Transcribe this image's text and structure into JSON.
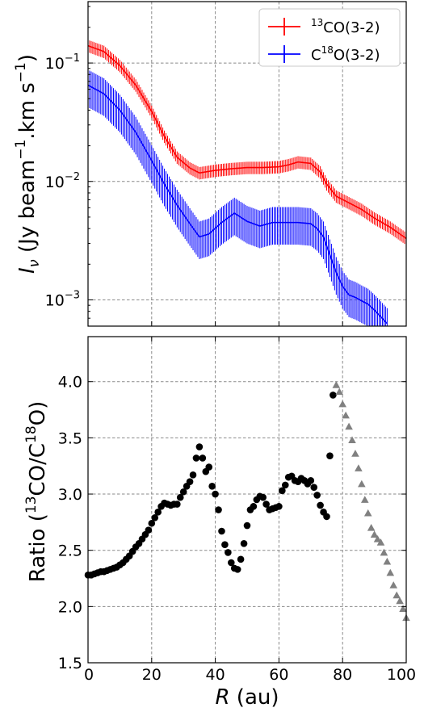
{
  "chart_data": [
    {
      "type": "line",
      "ylabel": "I_ν (Jy beam⁻¹.km s⁻¹)",
      "ylabel_symbol": "I",
      "ylabel_subscript": "ν",
      "ylabel_units_pre": " (Jy beam",
      "ylabel_units_sup1": "−1",
      "ylabel_units_mid": ".km s",
      "ylabel_units_sup2": "−1",
      "ylabel_units_post": ")",
      "yscale": "log",
      "ylim": [
        0.0006,
        0.33
      ],
      "xlim": [
        0,
        100
      ],
      "yticks": [
        {
          "value": 0.1,
          "base": "10",
          "exp": "−1"
        },
        {
          "value": 0.01,
          "base": "10",
          "exp": "−2"
        },
        {
          "value": 0.001,
          "base": "10",
          "exp": "−3"
        }
      ],
      "grid": true,
      "legend_position": "top-right",
      "series": [
        {
          "name": "13CO(3-2)",
          "legend_sup": "13",
          "legend_text": "CO(3-2)",
          "color": "#ff0000",
          "x": [
            0,
            5,
            10,
            15,
            20,
            24,
            28,
            32,
            35,
            40,
            45,
            50,
            55,
            60,
            63,
            66,
            70,
            73,
            75,
            78,
            82,
            86,
            90,
            95,
            100
          ],
          "y": [
            0.14,
            0.125,
            0.095,
            0.065,
            0.039,
            0.024,
            0.016,
            0.013,
            0.0118,
            0.0124,
            0.0128,
            0.0131,
            0.0131,
            0.0133,
            0.0138,
            0.0146,
            0.0142,
            0.012,
            0.0095,
            0.0075,
            0.0066,
            0.0058,
            0.0049,
            0.0041,
            0.0033
          ],
          "err_frac": 0.12
        },
        {
          "name": "C18O(3-2)",
          "legend_pre": "C",
          "legend_sup": "18",
          "legend_text": "O(3-2)",
          "color": "#0000ff",
          "x": [
            0,
            5,
            10,
            15,
            20,
            24,
            28,
            32,
            35,
            38,
            42,
            46,
            50,
            54,
            58,
            62,
            66,
            70,
            72,
            74,
            76,
            78,
            80,
            82,
            84,
            86,
            88,
            90,
            92,
            94
          ],
          "y": [
            0.065,
            0.055,
            0.04,
            0.026,
            0.015,
            0.0095,
            0.0063,
            0.0044,
            0.0034,
            0.0036,
            0.0045,
            0.0054,
            0.0046,
            0.0042,
            0.0045,
            0.0045,
            0.0045,
            0.0044,
            0.004,
            0.0034,
            0.0024,
            0.0017,
            0.0013,
            0.0011,
            0.00105,
            0.00098,
            0.00092,
            0.00082,
            0.00072,
            0.00063
          ],
          "err_frac": 0.35
        }
      ]
    },
    {
      "type": "scatter",
      "xlabel": "R (au)",
      "xlabel_symbol": "R",
      "xlabel_units": " (au)",
      "ylabel": "Ratio (13CO/C18O)",
      "ylabel_pre": "Ratio (",
      "ylabel_sup1": "13",
      "ylabel_mid": "CO/C",
      "ylabel_sup2": "18",
      "ylabel_post": "O)",
      "xlim": [
        0,
        100
      ],
      "ylim": [
        1.5,
        4.4
      ],
      "xticks": [
        "0",
        "20",
        "40",
        "60",
        "80",
        "100"
      ],
      "yticks": [
        "1.5",
        "2.0",
        "2.5",
        "3.0",
        "3.5",
        "4.0"
      ],
      "grid": true,
      "series": [
        {
          "marker": "circle",
          "color": "#000000",
          "x": [
            0,
            1,
            2,
            3,
            4,
            5,
            6,
            7,
            8,
            9,
            10,
            11,
            12,
            13,
            14,
            15,
            16,
            17,
            18,
            19,
            20,
            21,
            22,
            23,
            24,
            25,
            26,
            27,
            28,
            29,
            30,
            31,
            32,
            33,
            34,
            35,
            36,
            37,
            38,
            39,
            40,
            41,
            42,
            43,
            44,
            45,
            46,
            47,
            48,
            49,
            50,
            51,
            52,
            53,
            54,
            55,
            56,
            57,
            58,
            59,
            60,
            61,
            62,
            63,
            64,
            65,
            66,
            67,
            68,
            69,
            70,
            71,
            72,
            73,
            74,
            75,
            76,
            77
          ],
          "y": [
            2.28,
            2.28,
            2.29,
            2.3,
            2.31,
            2.31,
            2.32,
            2.33,
            2.34,
            2.35,
            2.37,
            2.39,
            2.42,
            2.45,
            2.49,
            2.53,
            2.56,
            2.6,
            2.64,
            2.68,
            2.74,
            2.79,
            2.84,
            2.89,
            2.92,
            2.91,
            2.9,
            2.91,
            2.91,
            2.97,
            3.02,
            3.07,
            3.11,
            3.17,
            3.32,
            3.42,
            3.32,
            3.2,
            3.24,
            3.07,
            3.0,
            2.86,
            2.67,
            2.55,
            2.48,
            2.39,
            2.34,
            2.33,
            2.42,
            2.56,
            2.72,
            2.86,
            2.89,
            2.95,
            2.98,
            2.97,
            2.91,
            2.86,
            2.87,
            2.88,
            2.89,
            3.03,
            3.08,
            3.15,
            3.16,
            3.12,
            3.11,
            3.14,
            3.12,
            3.09,
            3.12,
            3.06,
            2.99,
            2.9,
            2.84,
            2.8,
            3.34,
            3.88
          ]
        },
        {
          "marker": "triangle",
          "color": "#808080",
          "x": [
            78,
            79,
            80,
            81,
            82,
            83,
            84,
            85,
            86,
            87,
            88,
            89,
            90,
            91,
            92,
            93,
            94,
            95,
            96,
            97,
            98,
            99,
            100
          ],
          "y": [
            3.97,
            3.91,
            3.8,
            3.7,
            3.6,
            3.48,
            3.36,
            3.23,
            3.09,
            2.95,
            2.83,
            2.7,
            2.64,
            2.6,
            2.57,
            2.48,
            2.4,
            2.3,
            2.19,
            2.1,
            2.05,
            1.98,
            1.9
          ]
        }
      ]
    }
  ]
}
